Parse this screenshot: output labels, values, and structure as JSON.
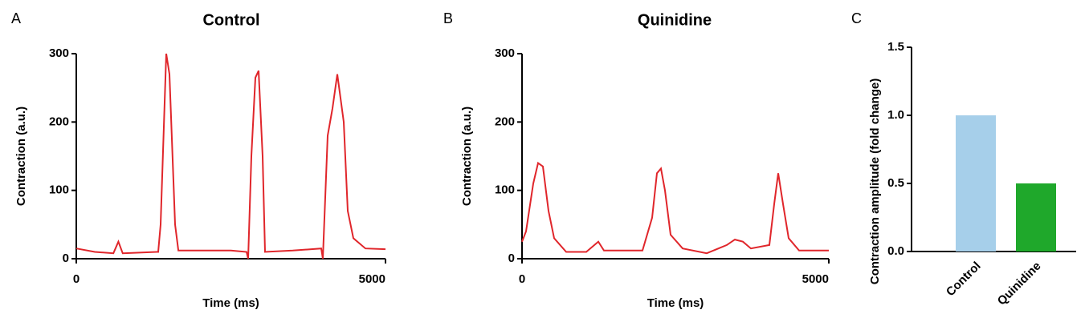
{
  "chart_data": [
    {
      "type": "line",
      "panel_label": "A",
      "title": "Control",
      "x_label": "Time (ms)",
      "y_label": "Contraction (a.u.)",
      "xlim": [
        0,
        5000
      ],
      "xticks": [
        0,
        5000
      ],
      "ylim": [
        0,
        300
      ],
      "yticks": [
        0,
        100,
        200,
        300
      ],
      "series": [
        {
          "name": "Control",
          "color": "#e0262b",
          "x": [
            0,
            300,
            600,
            680,
            750,
            1300,
            1325,
            1364,
            1455,
            1506,
            1597,
            1650,
            2500,
            2753,
            2779,
            2831,
            2896,
            2948,
            3013,
            3052,
            3500,
            3961,
            3987,
            4065,
            4143,
            4221,
            4325,
            4390,
            4481,
            4675,
            5000
          ],
          "values": [
            15,
            10,
            8,
            25,
            8,
            10,
            10,
            50,
            300,
            270,
            50,
            12,
            12,
            10,
            0,
            150,
            265,
            275,
            150,
            10,
            12,
            15,
            0,
            180,
            220,
            270,
            200,
            70,
            30,
            15,
            14
          ]
        }
      ]
    },
    {
      "type": "line",
      "panel_label": "B",
      "title": "Quinidine",
      "x_label": "Time (ms)",
      "y_label": "Contraction (a.u.)",
      "xlim": [
        0,
        5000
      ],
      "xticks": [
        0,
        5000
      ],
      "ylim": [
        0,
        300
      ],
      "yticks": [
        0,
        100,
        200,
        300
      ],
      "series": [
        {
          "name": "Quinidine",
          "color": "#e0262b",
          "x": [
            0,
            65,
            183,
            262,
            340,
            432,
            524,
            720,
            1047,
            1243,
            1335,
            1963,
            2120,
            2199,
            2264,
            2330,
            2421,
            2618,
            3010,
            3338,
            3469,
            3600,
            3730,
            4031,
            4110,
            4175,
            4254,
            4346,
            4516,
            5000
          ],
          "values": [
            25,
            40,
            110,
            140,
            135,
            70,
            30,
            10,
            10,
            25,
            12,
            12,
            60,
            125,
            132,
            100,
            35,
            15,
            8,
            20,
            28,
            25,
            15,
            20,
            80,
            125,
            80,
            30,
            12,
            12
          ]
        }
      ]
    },
    {
      "type": "bar",
      "panel_label": "C",
      "y_label": "Contraction amplitude (fold change)",
      "categories": [
        "Control",
        "Quinidine"
      ],
      "values": [
        1.0,
        0.5
      ],
      "colors": [
        "#a6cfea",
        "#1fa82b"
      ],
      "ylim": [
        0,
        1.5
      ],
      "yticks": [
        {
          "value": 0,
          "label": "0.0"
        },
        0.5,
        {
          "value": 1.0,
          "label": "1.0"
        },
        {
          "value": 1.5,
          "label": "1.5"
        }
      ]
    }
  ]
}
